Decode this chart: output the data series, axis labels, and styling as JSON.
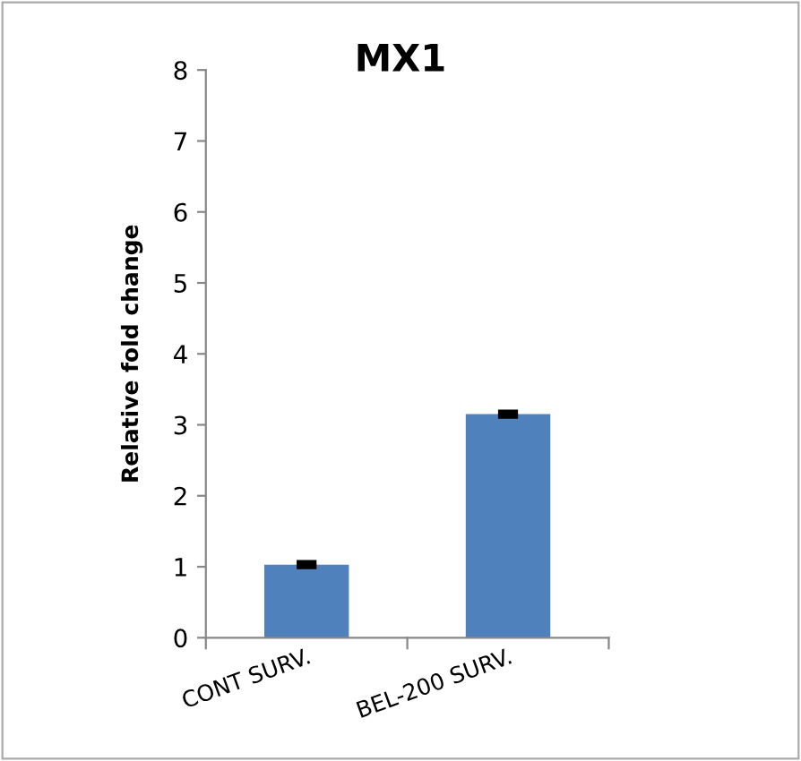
{
  "chart_data": {
    "type": "bar",
    "title": "MX1",
    "ylabel": "Relative fold change",
    "categories": [
      "CONT SURV.",
      "BEL-200 SURV."
    ],
    "values": [
      1.03,
      3.15
    ],
    "errors": [
      0.03,
      0.03
    ],
    "color": "#4f81bd",
    "ylim": [
      0,
      8
    ],
    "yticks": [
      0,
      1,
      2,
      3,
      4,
      5,
      6,
      7,
      8
    ],
    "grid": false,
    "legend": false
  }
}
